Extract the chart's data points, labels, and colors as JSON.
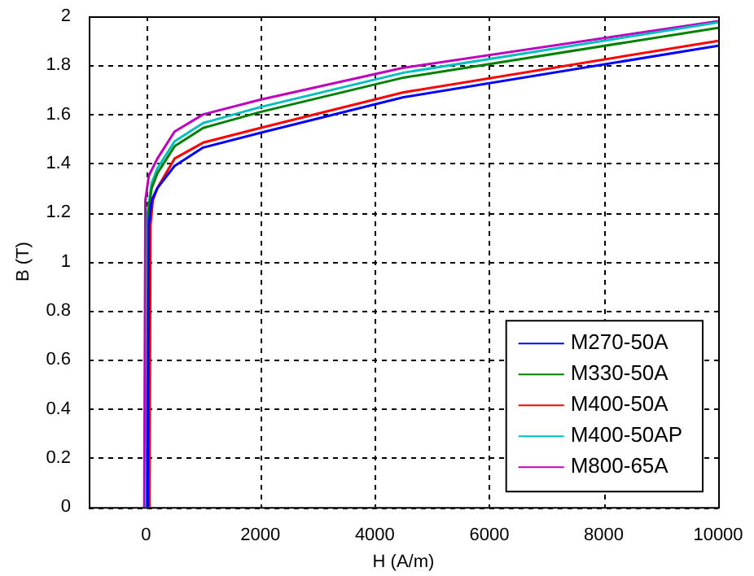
{
  "chart_data": {
    "type": "line",
    "xlabel": "H (A/m)",
    "ylabel": "B (T)",
    "xlim": [
      -1000,
      10000
    ],
    "xticks": [
      0,
      2000,
      4000,
      6000,
      8000,
      10000
    ],
    "ylim": [
      0,
      2
    ],
    "yticks": [
      0,
      0.2,
      0.4,
      0.6,
      0.8,
      1,
      1.2,
      1.4,
      1.6,
      1.8,
      2
    ],
    "grid": true,
    "legend": "bottom right",
    "line_style": "solid",
    "marker": "none",
    "series": [
      {
        "name": "M270-50A",
        "color": "#0000ff",
        "x": [
          30,
          50,
          100,
          200,
          500,
          1000,
          2000,
          4500,
          10000
        ],
        "values": [
          0,
          1.15,
          1.25,
          1.3,
          1.39,
          1.465,
          1.525,
          1.67,
          1.88
        ]
      },
      {
        "name": "M330-50A",
        "color": "#008000",
        "x": [
          20,
          40,
          100,
          200,
          500,
          1000,
          2000,
          4500,
          10000
        ],
        "values": [
          0,
          1.2,
          1.3,
          1.36,
          1.47,
          1.545,
          1.61,
          1.75,
          1.953
        ]
      },
      {
        "name": "M400-50A",
        "color": "#ff0000",
        "x": [
          60,
          80,
          120,
          200,
          500,
          1000,
          2000,
          4500,
          10000
        ],
        "values": [
          0,
          1.15,
          1.25,
          1.3,
          1.42,
          1.485,
          1.545,
          1.69,
          1.9
        ]
      },
      {
        "name": "M400-50AP",
        "color": "#00bfbf",
        "x": [
          10,
          30,
          100,
          200,
          500,
          1000,
          2000,
          4500,
          10000
        ],
        "values": [
          0,
          1.2,
          1.32,
          1.38,
          1.49,
          1.565,
          1.63,
          1.77,
          1.975
        ]
      },
      {
        "name": "M800-65A",
        "color": "#bf00bf",
        "x": [
          -30,
          -10,
          50,
          200,
          500,
          1000,
          2000,
          4500,
          10000
        ],
        "values": [
          0,
          1.25,
          1.35,
          1.42,
          1.53,
          1.6,
          1.66,
          1.79,
          1.98
        ]
      }
    ]
  }
}
